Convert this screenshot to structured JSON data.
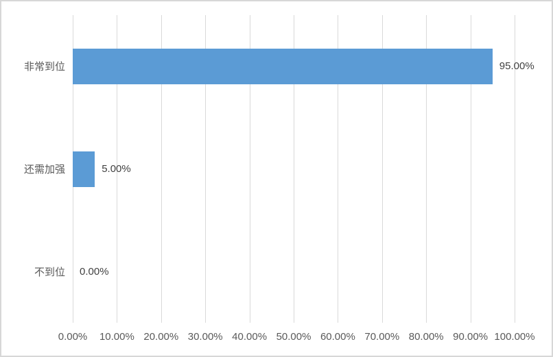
{
  "chart_data": {
    "type": "bar",
    "orientation": "horizontal",
    "title": "",
    "xlabel": "",
    "ylabel": "",
    "categories": [
      "非常到位",
      "还需加强",
      "不到位"
    ],
    "values": [
      95,
      5,
      0
    ],
    "data_labels": [
      "95.00%",
      "5.00%",
      "0.00%"
    ],
    "x_ticks": [
      "0.00%",
      "10.00%",
      "20.00%",
      "30.00%",
      "40.00%",
      "50.00%",
      "60.00%",
      "70.00%",
      "80.00%",
      "90.00%",
      "100.00%"
    ],
    "xlim": [
      0,
      100
    ],
    "grid": true,
    "legend_position": "none",
    "colors": {
      "bar": "#5B9BD5",
      "gridline": "#D9D9D9",
      "border": "#D7D7D7",
      "category_label": "#595959",
      "tick_label": "#595959",
      "data_label": "#404040",
      "background": "#FFFFFF"
    }
  }
}
